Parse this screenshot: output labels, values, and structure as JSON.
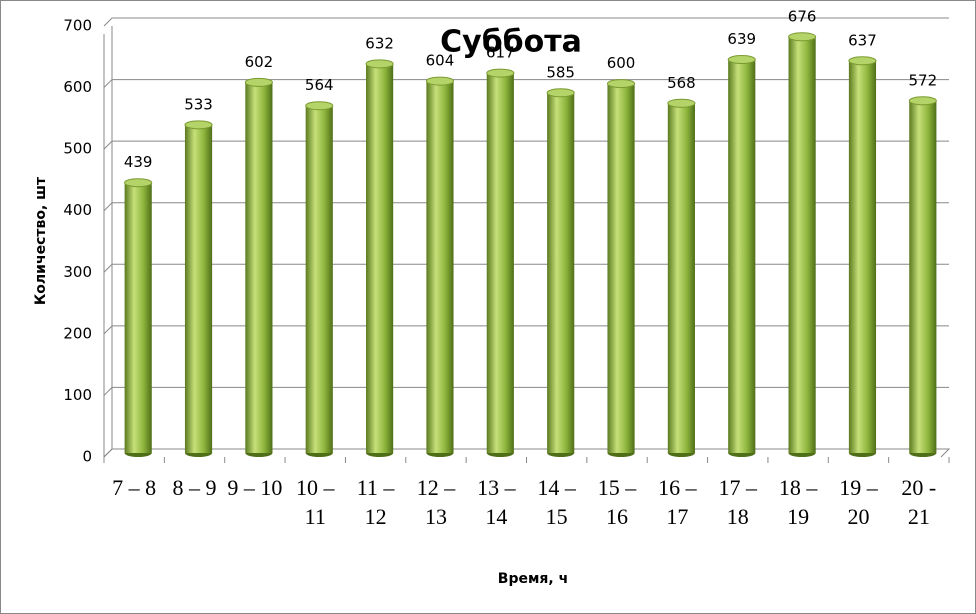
{
  "chart_data": {
    "type": "bar",
    "title": "Суббота",
    "x_label": "Время, ч",
    "y_label": "Количество, шт",
    "categories": [
      "7 – 8",
      "8 – 9",
      "9 – 10",
      "10 – 11",
      "11 – 12",
      "12 – 13",
      "13 – 14",
      "14 – 15",
      "15 – 16",
      "16 – 17",
      "17 – 18",
      "18 – 19",
      "19 – 20",
      "20 - 21"
    ],
    "values": [
      439,
      533,
      602,
      564,
      632,
      604,
      617,
      585,
      600,
      568,
      639,
      676,
      637,
      572
    ],
    "color": "#8db43c",
    "ylim": [
      0,
      700
    ],
    "yticks": [
      0,
      100,
      200,
      300,
      400,
      500,
      600,
      700
    ],
    "grid": true
  }
}
